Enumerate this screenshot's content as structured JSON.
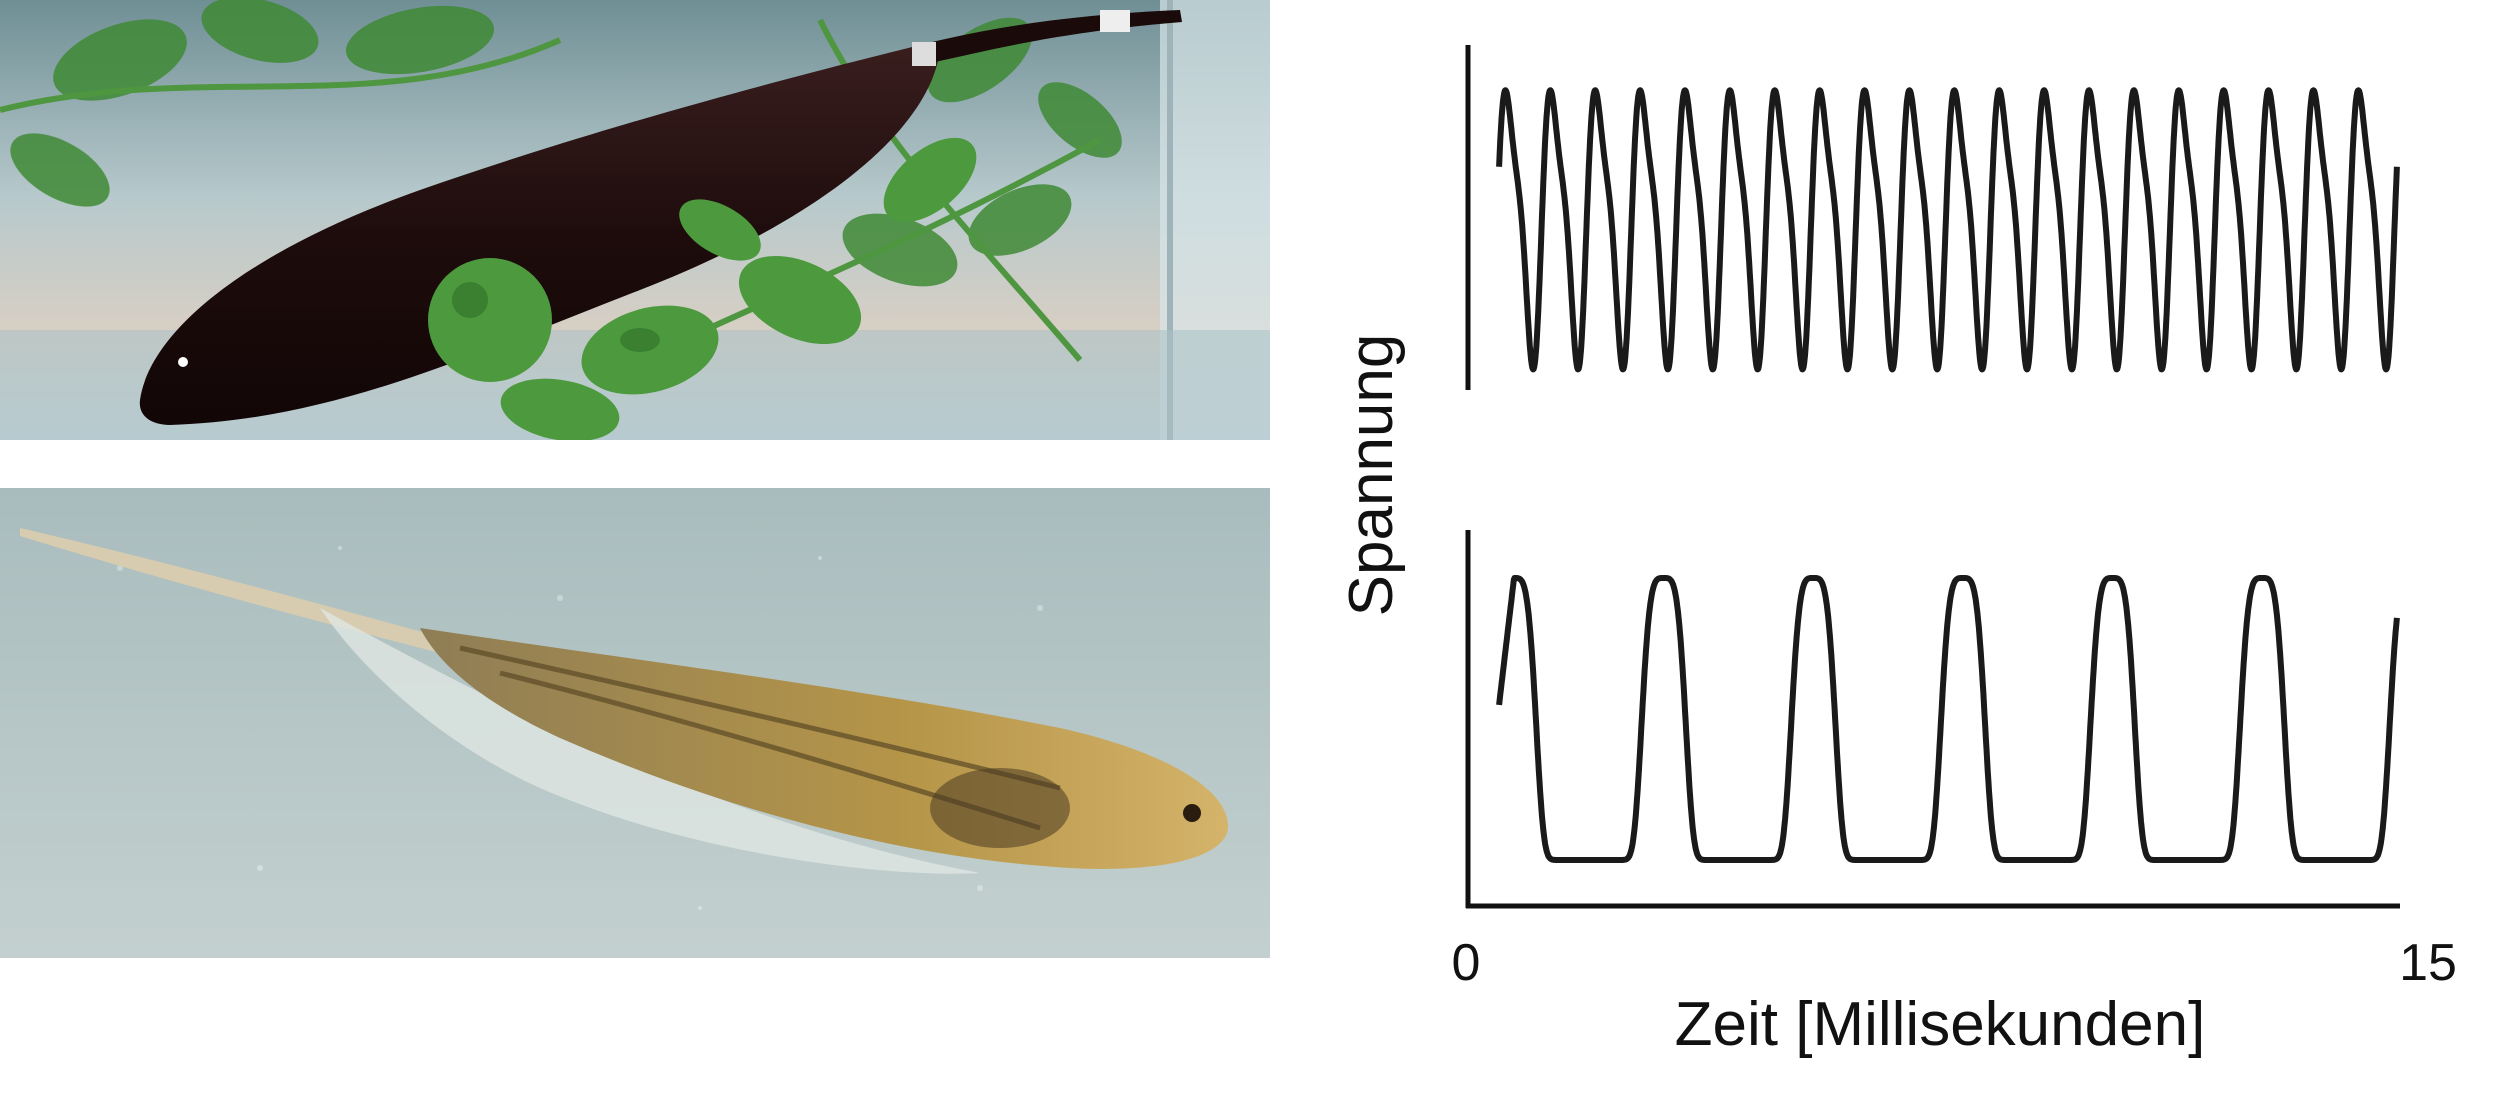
{
  "photos": [
    {
      "subject": "black-ghost-knifefish",
      "colors": {
        "water": "#b9cfd3",
        "leaves": "#3f8a35",
        "fish": "#1e0c0c"
      }
    },
    {
      "subject": "glass-knifefish",
      "colors": {
        "water": "#b4c3c3",
        "fish": "#b99a52"
      }
    }
  ],
  "chart_data": {
    "type": "line",
    "ylabel": "Spannung",
    "xlabel": "Zeit [Millisekunden]",
    "xlim": [
      0,
      15
    ],
    "x_ticks": [
      "0",
      "15"
    ],
    "grid": false,
    "panels": [
      {
        "name": "wave-type-high-frequency",
        "cycles": 20,
        "x_start": 0.5,
        "x_end": 14.95
      },
      {
        "name": "wave-type-low-frequency",
        "cycles": 6,
        "x_start": 0.5,
        "x_end": 14.95
      }
    ],
    "line_color": "#1a1a1a"
  }
}
